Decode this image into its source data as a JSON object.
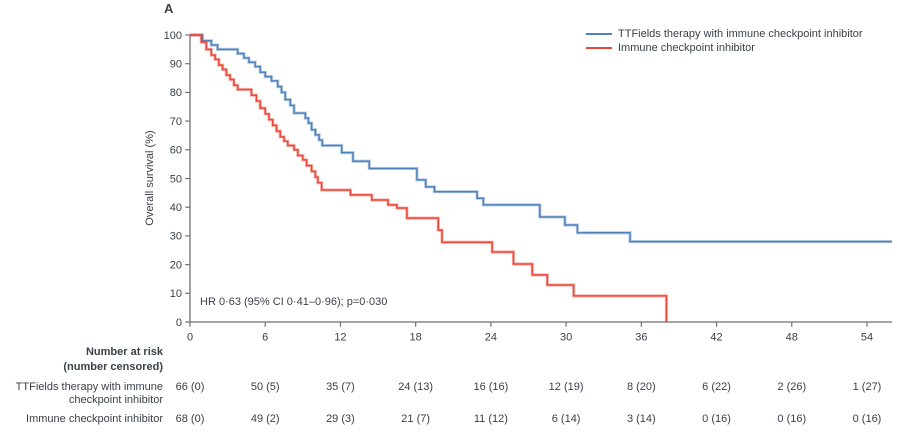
{
  "panel_label": "A",
  "annotation": "HR 0·63 (95% CI 0·41–0·96); p=0·030",
  "colors": {
    "ttfields_blue": "#4e82bc",
    "ici_red": "#ec4638",
    "axis": "#707176",
    "text": "#3a4149"
  },
  "legend": {
    "items": [
      {
        "label": "TTFields therapy with immune checkpoint inhibitor",
        "color": "#4e82bc"
      },
      {
        "label": "Immune checkpoint inhibitor",
        "color": "#ec4638"
      }
    ]
  },
  "chart_data": {
    "type": "line",
    "subtype": "kaplan-meier-step",
    "title": "",
    "xlabel": "",
    "ylabel": "Overall survival (%)",
    "xlim": [
      0,
      56
    ],
    "ylim": [
      0,
      100
    ],
    "xticks": [
      0,
      6,
      12,
      18,
      24,
      30,
      36,
      42,
      48,
      54
    ],
    "yticks": [
      0,
      10,
      20,
      30,
      40,
      50,
      60,
      70,
      80,
      90,
      100
    ],
    "grid": false,
    "legend_position": "top-right",
    "series": [
      {
        "name": "TTFields therapy with immune checkpoint inhibitor",
        "color": "#4e82bc",
        "extend_to_x": 56,
        "points": [
          [
            0,
            100
          ],
          [
            1.0,
            98
          ],
          [
            1.7,
            96.5
          ],
          [
            2.2,
            95
          ],
          [
            3.8,
            93.5
          ],
          [
            4.3,
            92
          ],
          [
            4.7,
            90.5
          ],
          [
            5.2,
            89
          ],
          [
            5.6,
            87
          ],
          [
            6.0,
            85.5
          ],
          [
            6.5,
            84
          ],
          [
            7.0,
            82
          ],
          [
            7.3,
            80
          ],
          [
            7.6,
            77.5
          ],
          [
            8.0,
            75.5
          ],
          [
            8.3,
            72.8
          ],
          [
            9.2,
            71
          ],
          [
            9.45,
            69.3
          ],
          [
            9.7,
            67
          ],
          [
            10.0,
            65.2
          ],
          [
            10.3,
            63.4
          ],
          [
            10.55,
            61.5
          ],
          [
            12.1,
            59
          ],
          [
            13.0,
            56
          ],
          [
            14.3,
            53.5
          ],
          [
            18.1,
            49.5
          ],
          [
            18.8,
            47.1
          ],
          [
            19.5,
            45.4
          ],
          [
            22.9,
            43.1
          ],
          [
            23.4,
            40.8
          ],
          [
            27.9,
            36.6
          ],
          [
            29.9,
            33.8
          ],
          [
            30.9,
            31.1
          ],
          [
            35.1,
            28
          ]
        ]
      },
      {
        "name": "Immune checkpoint inhibitor",
        "color": "#ec4638",
        "extend_to_x": null,
        "points": [
          [
            0,
            100
          ],
          [
            0.9,
            97.5
          ],
          [
            1.3,
            95
          ],
          [
            1.7,
            93
          ],
          [
            2.0,
            91.5
          ],
          [
            2.3,
            89.5
          ],
          [
            2.6,
            88
          ],
          [
            2.9,
            86
          ],
          [
            3.2,
            84.5
          ],
          [
            3.5,
            82.5
          ],
          [
            3.8,
            81
          ],
          [
            4.9,
            79
          ],
          [
            5.3,
            77
          ],
          [
            5.6,
            74.5
          ],
          [
            6.0,
            72.5
          ],
          [
            6.3,
            70.5
          ],
          [
            6.6,
            68.5
          ],
          [
            6.9,
            66.5
          ],
          [
            7.2,
            64.5
          ],
          [
            7.5,
            63
          ],
          [
            7.8,
            61.5
          ],
          [
            8.3,
            60
          ],
          [
            8.6,
            58
          ],
          [
            9.0,
            56.5
          ],
          [
            9.3,
            54.5
          ],
          [
            9.7,
            52.5
          ],
          [
            10.0,
            50.5
          ],
          [
            10.2,
            48.5
          ],
          [
            10.5,
            46
          ],
          [
            12.8,
            44.3
          ],
          [
            14.5,
            42.5
          ],
          [
            15.8,
            40.8
          ],
          [
            16.5,
            39.7
          ],
          [
            17.3,
            36.2
          ],
          [
            19.8,
            32
          ],
          [
            20.1,
            27.8
          ],
          [
            24.1,
            24.4
          ],
          [
            25.8,
            20.2
          ],
          [
            27.3,
            16.4
          ],
          [
            28.5,
            12.9
          ],
          [
            30.6,
            9.1
          ],
          [
            38,
            0
          ]
        ]
      }
    ]
  },
  "risk_table": {
    "header_line1": "Number at risk",
    "header_line2": "(number censored)",
    "rows": [
      {
        "label_line1": "TTFields therapy with immune",
        "label_line2": "checkpoint inhibitor",
        "values": [
          "66 (0)",
          "50 (5)",
          "35 (7)",
          "24 (13)",
          "16 (16)",
          "12 (19)",
          "8 (20)",
          "6 (22)",
          "2 (26)",
          "1 (27)"
        ]
      },
      {
        "label_line1": "Immune checkpoint inhibitor",
        "label_line2": "",
        "values": [
          "68 (0)",
          "49 (2)",
          "29 (3)",
          "21 (7)",
          "11 (12)",
          "6 (14)",
          "3 (14)",
          "0 (16)",
          "0 (16)",
          "0 (16)"
        ]
      }
    ]
  }
}
